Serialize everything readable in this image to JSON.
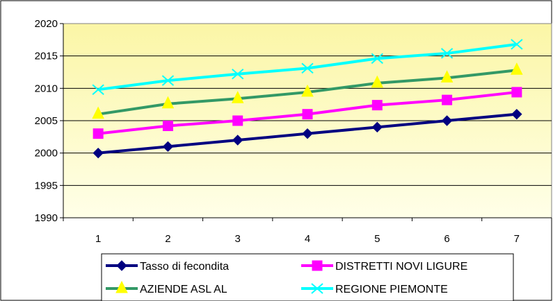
{
  "chart_data": {
    "type": "line",
    "title": "",
    "xlabel": "",
    "ylabel": "",
    "x": [
      1,
      2,
      3,
      4,
      5,
      6,
      7
    ],
    "ylim": [
      1990,
      2020
    ],
    "yticks": [
      1990,
      1995,
      2000,
      2005,
      2010,
      2015,
      2020
    ],
    "grid": true,
    "legend_position": "bottom",
    "series": [
      {
        "name": "Tasso di fecondita",
        "color": "#000080",
        "marker": "diamond",
        "values": [
          2000,
          2001,
          2002,
          2003,
          2004,
          2005,
          2006
        ]
      },
      {
        "name": "DISTRETTI NOVI LIGURE",
        "color": "#ff00ff",
        "marker": "square",
        "values": [
          2003,
          2004.2,
          2005,
          2006,
          2007.4,
          2008.2,
          2009.4
        ]
      },
      {
        "name": "AZIENDE ASL AL",
        "color": "#339966",
        "marker": "triangle",
        "marker_color": "#ffff00",
        "values": [
          2006,
          2007.6,
          2008.4,
          2009.4,
          2010.8,
          2011.6,
          2012.8
        ]
      },
      {
        "name": "REGIONE PIEMONTE",
        "color": "#00ffff",
        "marker": "x",
        "values": [
          2009.8,
          2011.2,
          2012.2,
          2013.1,
          2014.6,
          2015.4,
          2016.8
        ]
      }
    ]
  }
}
